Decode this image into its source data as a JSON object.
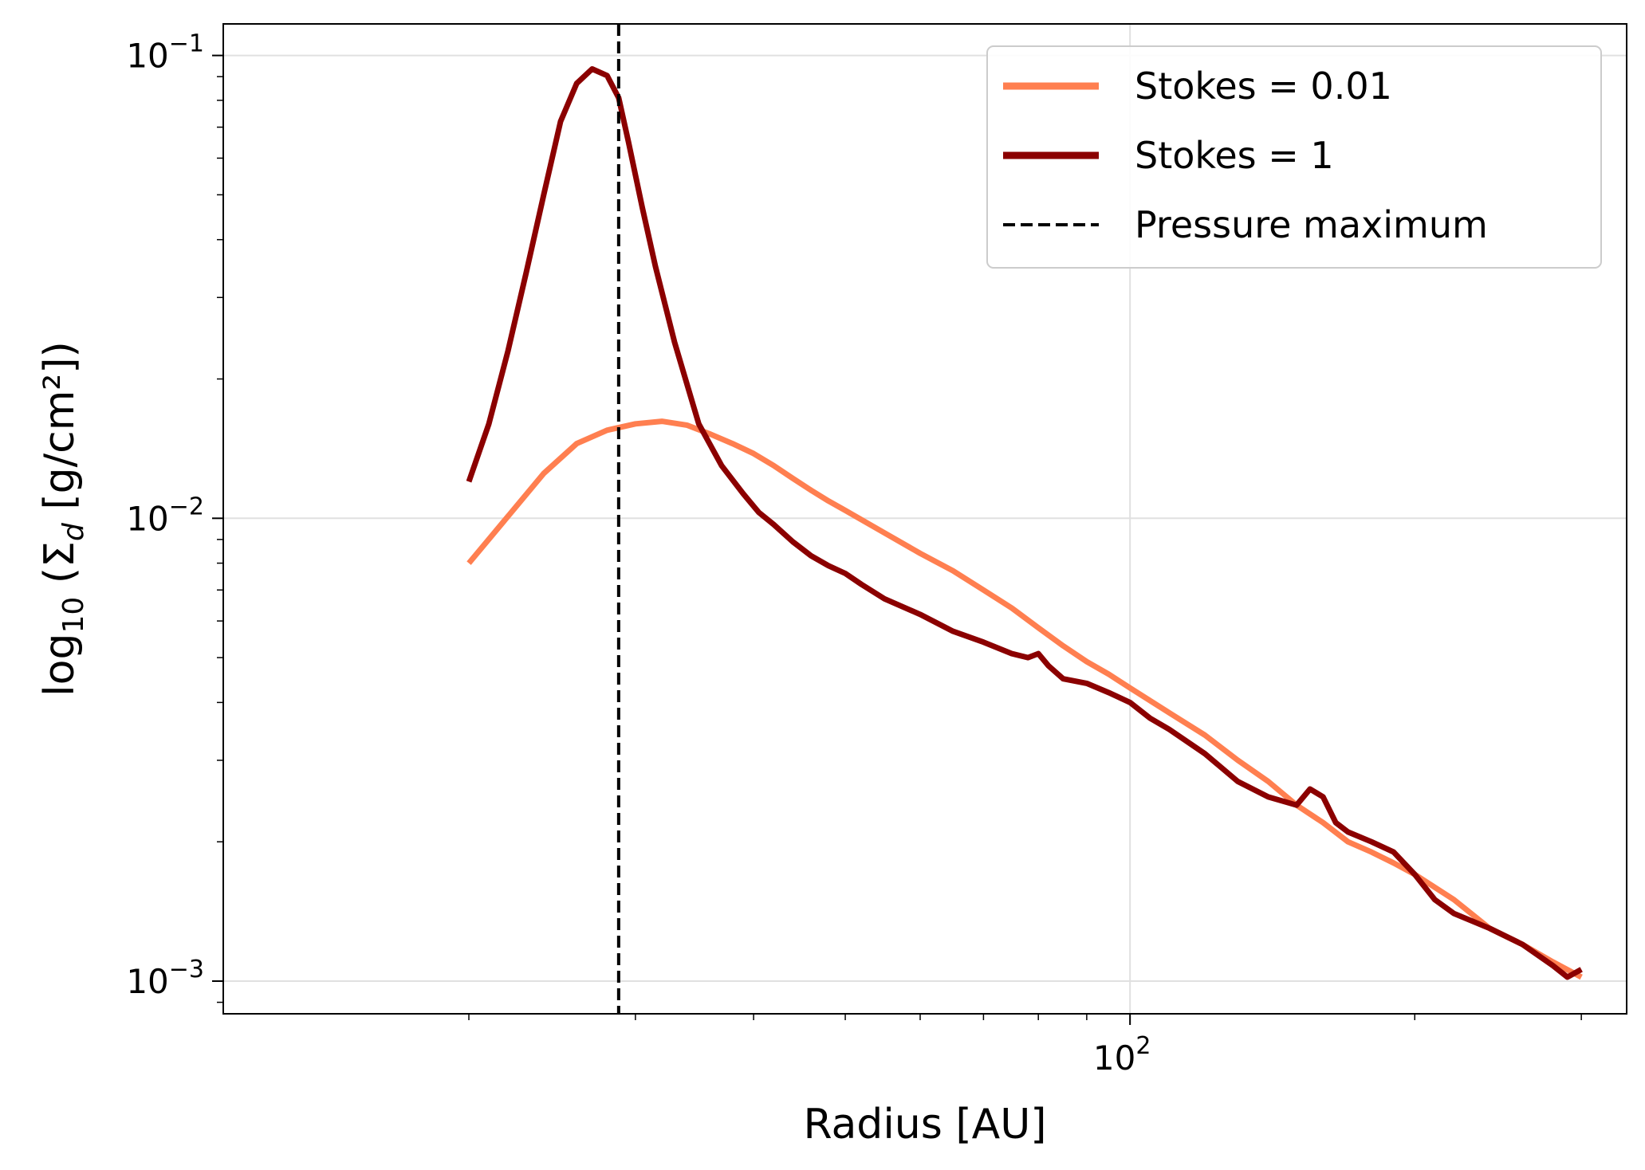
{
  "chart_data": {
    "type": "line",
    "xscale": "log",
    "yscale": "log",
    "xlabel": "Radius [AU]",
    "ylabel_parts": {
      "log": "log",
      "sub10": "10",
      "open": " (Σ",
      "subd": "d",
      "close": " [g/cm²])"
    },
    "xlim": [
      11,
      335
    ],
    "ylim": [
      0.00085,
      0.117
    ],
    "x_major_ticks": [
      {
        "value": 100,
        "base": "10",
        "exp": "2"
      }
    ],
    "x_minor_ticks": [
      20,
      30,
      40,
      50,
      60,
      70,
      80,
      90,
      200,
      300
    ],
    "y_major_ticks": [
      {
        "value": 0.001,
        "base": "10",
        "exp": "−3"
      },
      {
        "value": 0.01,
        "base": "10",
        "exp": "−2"
      },
      {
        "value": 0.1,
        "base": "10",
        "exp": "−1"
      }
    ],
    "y_minor_ticks": [
      0.0009,
      0.002,
      0.003,
      0.004,
      0.005,
      0.006,
      0.007,
      0.008,
      0.009,
      0.02,
      0.03,
      0.04,
      0.05,
      0.06,
      0.07,
      0.08,
      0.09
    ],
    "grid": true,
    "legend_position": "top-right",
    "series": [
      {
        "name": "Stokes = 0.01",
        "color": "#ff7f50",
        "x": [
          20,
          22,
          24,
          26,
          28,
          30,
          32,
          34,
          36,
          38,
          40,
          42,
          44,
          46,
          48,
          50,
          55,
          60,
          65,
          70,
          75,
          80,
          85,
          90,
          95,
          100,
          110,
          120,
          130,
          140,
          150,
          160,
          170,
          180,
          190,
          200,
          220,
          240,
          260,
          280,
          300
        ],
        "y": [
          0.008,
          0.0101,
          0.0125,
          0.0145,
          0.0155,
          0.016,
          0.0162,
          0.0159,
          0.0152,
          0.0145,
          0.0138,
          0.013,
          0.0122,
          0.0115,
          0.0109,
          0.0104,
          0.0093,
          0.0084,
          0.0077,
          0.007,
          0.0064,
          0.0058,
          0.0053,
          0.0049,
          0.0046,
          0.0043,
          0.0038,
          0.0034,
          0.003,
          0.0027,
          0.0024,
          0.0022,
          0.002,
          0.0019,
          0.0018,
          0.0017,
          0.0015,
          0.0013,
          0.0012,
          0.0011,
          0.00102
        ]
      },
      {
        "name": "Stokes = 1",
        "color": "#8b0000",
        "x": [
          20,
          21,
          22,
          23,
          24,
          25,
          26,
          27,
          28,
          28.8,
          29.5,
          30.5,
          31.5,
          33,
          35,
          37,
          39,
          40.5,
          42,
          44,
          46,
          48,
          50,
          52,
          55,
          60,
          65,
          70,
          75,
          78,
          80,
          82,
          85,
          90,
          95,
          100,
          105,
          110,
          120,
          130,
          140,
          150,
          155,
          160,
          165,
          170,
          180,
          190,
          200,
          210,
          220,
          240,
          260,
          280,
          290,
          300
        ],
        "y": [
          0.012,
          0.016,
          0.023,
          0.034,
          0.05,
          0.072,
          0.087,
          0.0935,
          0.0905,
          0.081,
          0.065,
          0.047,
          0.035,
          0.024,
          0.016,
          0.013,
          0.0113,
          0.0103,
          0.0097,
          0.0089,
          0.0083,
          0.0079,
          0.0076,
          0.0072,
          0.0067,
          0.0062,
          0.0057,
          0.0054,
          0.0051,
          0.005,
          0.0051,
          0.0048,
          0.0045,
          0.0044,
          0.0042,
          0.004,
          0.0037,
          0.0035,
          0.0031,
          0.0027,
          0.0025,
          0.0024,
          0.0026,
          0.0025,
          0.0022,
          0.0021,
          0.002,
          0.0019,
          0.0017,
          0.0015,
          0.0014,
          0.0013,
          0.0012,
          0.00108,
          0.00102,
          0.00106
        ]
      }
    ],
    "vline": {
      "name": "Pressure maximum",
      "x": 28.8,
      "color": "#000000",
      "style": "dashed"
    },
    "legend": [
      {
        "label": "Stokes = 0.01",
        "color": "#ff7f50",
        "style": "solid"
      },
      {
        "label": "Stokes = 1",
        "color": "#8b0000",
        "style": "solid"
      },
      {
        "label": "Pressure maximum",
        "color": "#000000",
        "style": "dashed"
      }
    ]
  }
}
